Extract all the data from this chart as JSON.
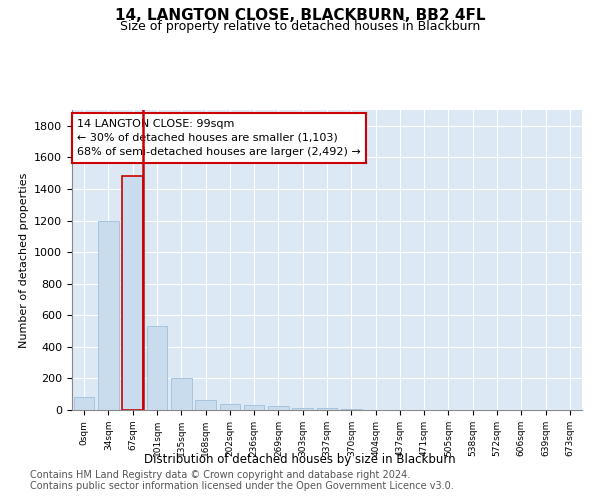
{
  "title": "14, LANGTON CLOSE, BLACKBURN, BB2 4FL",
  "subtitle": "Size of property relative to detached houses in Blackburn",
  "xlabel": "Distribution of detached houses by size in Blackburn",
  "ylabel": "Number of detached properties",
  "bar_color": "#c9dcee",
  "bar_edge_color": "#a8c4de",
  "highlight_bar_index": 2,
  "highlight_bar_edge_color": "#cc0000",
  "annotation_text": "14 LANGTON CLOSE: 99sqm\n← 30% of detached houses are smaller (1,103)\n68% of semi-detached houses are larger (2,492) →",
  "annotation_box_color": "white",
  "annotation_box_edge_color": "#cc0000",
  "categories": [
    "0sqm",
    "34sqm",
    "67sqm",
    "101sqm",
    "135sqm",
    "168sqm",
    "202sqm",
    "236sqm",
    "269sqm",
    "303sqm",
    "337sqm",
    "370sqm",
    "404sqm",
    "437sqm",
    "471sqm",
    "505sqm",
    "538sqm",
    "572sqm",
    "606sqm",
    "639sqm",
    "673sqm"
  ],
  "values": [
    80,
    1200,
    1480,
    535,
    205,
    65,
    40,
    30,
    25,
    15,
    10,
    5,
    3,
    2,
    1,
    1,
    0,
    0,
    0,
    0,
    0
  ],
  "ylim": [
    0,
    1900
  ],
  "yticks": [
    0,
    200,
    400,
    600,
    800,
    1000,
    1200,
    1400,
    1600,
    1800
  ],
  "plot_bg_color": "#dce9f5",
  "grid_color": "white",
  "footer_line1": "Contains HM Land Registry data © Crown copyright and database right 2024.",
  "footer_line2": "Contains public sector information licensed under the Open Government Licence v3.0.",
  "title_fontsize": 11,
  "subtitle_fontsize": 9,
  "footer_fontsize": 7
}
